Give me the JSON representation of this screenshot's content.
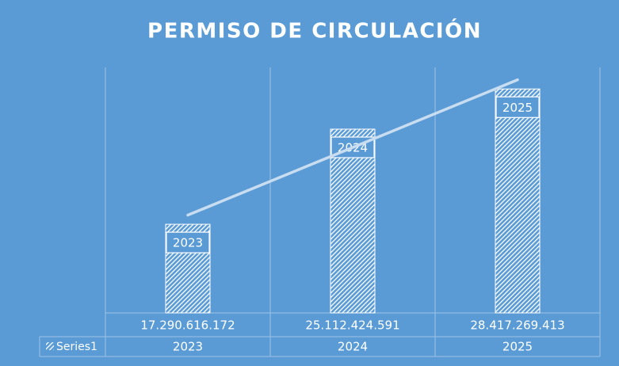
{
  "chart_data": {
    "type": "bar",
    "title": "PERMISO DE CIRCULACIÓN",
    "categories": [
      "2023",
      "2024",
      "2025"
    ],
    "series": [
      {
        "name": "Series1",
        "color": "#ffffff",
        "values": [
          17290616172,
          25112424591,
          28417269413
        ],
        "value_labels": [
          "17.290.616.172",
          "25.112.424.591",
          "28.417.269.413"
        ]
      }
    ],
    "ylim": [
      10000000000,
      30000000000
    ],
    "trendline": "linear",
    "data_table": true
  }
}
